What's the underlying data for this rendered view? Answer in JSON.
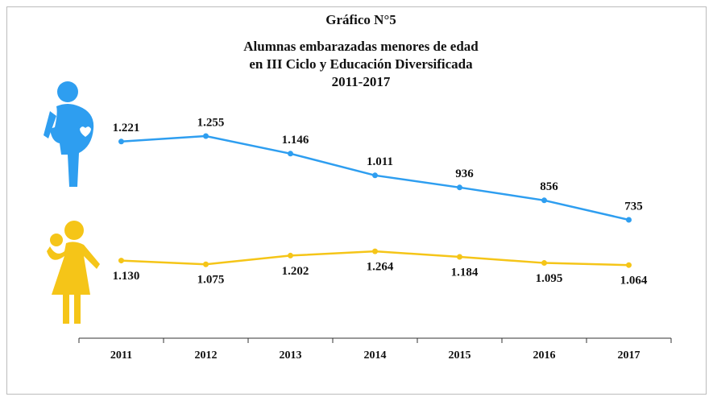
{
  "chart_data": {
    "type": "line",
    "title": "Gráfico N°5",
    "subtitle": [
      "Alumnas embarazadas menores de edad",
      "en III Ciclo y Educación Diversificada",
      "2011-2017"
    ],
    "categories": [
      "2011",
      "2012",
      "2013",
      "2014",
      "2015",
      "2016",
      "2017"
    ],
    "series": [
      {
        "color": "#2e9ef0",
        "values": [
          1221,
          1255,
          1146,
          1011,
          936,
          856,
          735
        ],
        "value_labels": [
          "1.221",
          "1.255",
          "1.146",
          "1.011",
          "936",
          "856",
          "735"
        ],
        "label_position": "above"
      },
      {
        "color": "#f5c518",
        "axis": "y2",
        "values": [
          1130,
          1075,
          1202,
          1264,
          1184,
          1095,
          1064
        ],
        "value_labels": [
          "1.130",
          "1.075",
          "1.202",
          "1.264",
          "1.184",
          "1.095",
          "1.064"
        ],
        "label_position": "below"
      }
    ],
    "ylim": [
      0,
      1600
    ],
    "y2lim": [
      0,
      3750
    ]
  }
}
